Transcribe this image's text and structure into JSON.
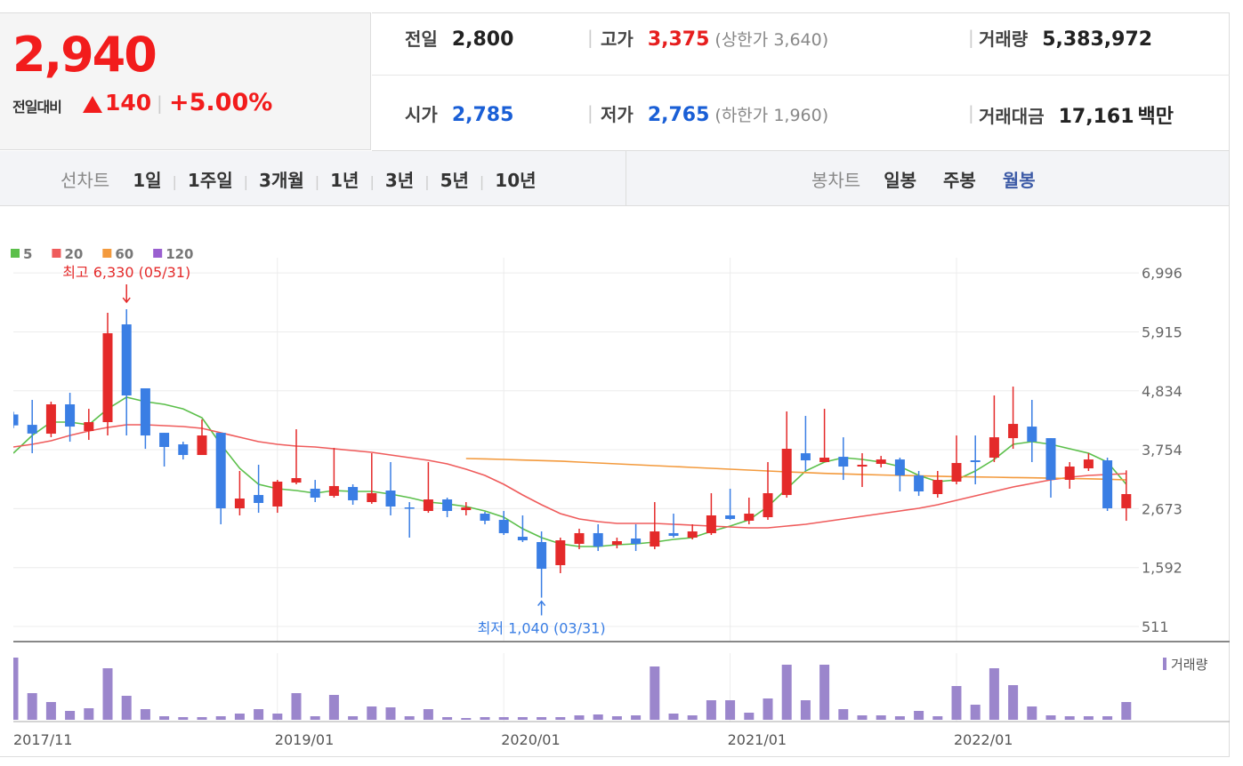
{
  "quote": {
    "price": "2,940",
    "change_label": "전일대비",
    "change": "140",
    "rate": "+5.00%"
  },
  "stats": [
    {
      "label": "전일",
      "value": "2,800"
    },
    {
      "label": "고가",
      "value": "3,375",
      "limit_label": "상한가",
      "limit_value": "3,640"
    },
    {
      "label": "거래량",
      "value": "5,383,972"
    },
    {
      "label": "시가",
      "value": "2,785"
    },
    {
      "label": "저가",
      "value": "2,765",
      "limit_label": "하한가",
      "limit_value": "1,960"
    },
    {
      "label": "거래대금",
      "value": "17,161",
      "unit": "백만"
    }
  ],
  "line_tabs": {
    "label": "선차트",
    "items": [
      "1일",
      "1주일",
      "3개월",
      "1년",
      "3년",
      "5년",
      "10년"
    ]
  },
  "candle_tabs": {
    "label": "봉차트",
    "items": [
      "일봉",
      "주봉",
      "월봉"
    ],
    "active": "월봉"
  },
  "chart_data": {
    "type": "candlestick",
    "categories": [
      "2017/11",
      null,
      null,
      null,
      null,
      null,
      null,
      null,
      null,
      null,
      null,
      null,
      null,
      null,
      "2019/01",
      null,
      null,
      null,
      null,
      null,
      null,
      null,
      null,
      null,
      null,
      null,
      "2020/01",
      null,
      null,
      null,
      null,
      null,
      null,
      null,
      null,
      null,
      null,
      null,
      "2021/01",
      null,
      null,
      null,
      null,
      null,
      null,
      null,
      null,
      null,
      null,
      null,
      "2022/01",
      null,
      null,
      null,
      null,
      null,
      null,
      null,
      null,
      null
    ],
    "open": [
      4400,
      4210,
      4048,
      4586,
      4097,
      4260,
      6053,
      4880,
      4064,
      3852,
      3657,
      4064,
      2679,
      2923,
      2712,
      3151,
      3038,
      2907,
      3070,
      2793,
      3005,
      2695,
      2630,
      2842,
      2646,
      2581,
      2467,
      2157,
      2060,
      1636,
      2027,
      2223,
      2011,
      2125,
      1978,
      2223,
      2141,
      2223,
      2549,
      2451,
      2516,
      2923,
      3689,
      3527,
      3624,
      3445,
      3494,
      3575,
      3282,
      2940,
      3168,
      3559,
      3608,
      3966,
      4178,
      3966,
      3201,
      3412,
      3559,
      2680
    ],
    "high": [
      4450,
      4668,
      4635,
      4798,
      4504,
      6265,
      6330,
      4880,
      4064,
      3901,
      4309,
      4064,
      3364,
      3478,
      3200,
      4129,
      3200,
      3787,
      3119,
      3690,
      3527,
      2793,
      3527,
      2875,
      2793,
      2614,
      2630,
      2549,
      2255,
      2141,
      2304,
      2386,
      2141,
      2386,
      2793,
      2581,
      2386,
      2956,
      3038,
      2875,
      3527,
      4456,
      4374,
      4504,
      3982,
      3690,
      3640,
      3608,
      3364,
      3364,
      4015,
      4015,
      4749,
      4912,
      4668,
      3966,
      3527,
      3690,
      3608,
      3375
    ],
    "low": [
      4150,
      3690,
      3983,
      3901,
      3934,
      4015,
      4015,
      3770,
      3445,
      3575,
      3657,
      2386,
      2549,
      2597,
      2597,
      3119,
      2793,
      2875,
      2744,
      2761,
      2549,
      2141,
      2597,
      2516,
      2549,
      2386,
      2190,
      2060,
      1040,
      1489,
      1929,
      1896,
      1945,
      1896,
      1929,
      2141,
      2108,
      2190,
      2467,
      2386,
      2467,
      2875,
      3364,
      3527,
      3200,
      3070,
      3429,
      2989,
      2907,
      2875,
      3119,
      3119,
      3527,
      3771,
      3527,
      2875,
      3038,
      3364,
      2630,
      2450
    ],
    "close": [
      4200,
      4050,
      4586,
      4178,
      4260,
      5890,
      4749,
      4015,
      3804,
      3657,
      4015,
      2679,
      2858,
      2777,
      3168,
      3233,
      2875,
      3087,
      2826,
      2956,
      2712,
      2679,
      2842,
      2630,
      2695,
      2451,
      2223,
      2092,
      1570,
      2092,
      2223,
      1978,
      2076,
      2027,
      2255,
      2174,
      2255,
      2549,
      2483,
      2581,
      2956,
      3771,
      3559,
      3608,
      3445,
      3478,
      3575,
      3282,
      2989,
      3200,
      3510,
      3527,
      3982,
      4227,
      3901,
      3201,
      3445,
      3575,
      2679,
      2940
    ],
    "up_color": "#e42a2a",
    "down_color": "#3a7ee4",
    "series": [
      {
        "name": "5",
        "color": "#5bbf4a",
        "values": [
          3690,
          4015,
          4260,
          4260,
          4211,
          4504,
          4716,
          4635,
          4586,
          4504,
          4341,
          3852,
          3412,
          3119,
          3038,
          3005,
          2956,
          3005,
          2989,
          2989,
          2940,
          2875,
          2793,
          2761,
          2712,
          2630,
          2516,
          2304,
          2141,
          2027,
          1978,
          1978,
          2011,
          2027,
          2060,
          2108,
          2141,
          2255,
          2353,
          2467,
          2712,
          3038,
          3364,
          3527,
          3608,
          3575,
          3527,
          3445,
          3282,
          3168,
          3200,
          3364,
          3575,
          3852,
          3901,
          3852,
          3771,
          3690,
          3527,
          3119
        ]
      },
      {
        "name": "20",
        "color": "#ef5b5b",
        "values": [
          3804,
          3853,
          3918,
          4016,
          4097,
          4162,
          4211,
          4211,
          4195,
          4179,
          4146,
          4064,
          3983,
          3901,
          3853,
          3820,
          3804,
          3771,
          3738,
          3706,
          3657,
          3608,
          3559,
          3494,
          3396,
          3282,
          3119,
          2923,
          2744,
          2581,
          2483,
          2434,
          2402,
          2402,
          2402,
          2386,
          2369,
          2353,
          2337,
          2320,
          2320,
          2353,
          2386,
          2434,
          2483,
          2532,
          2581,
          2630,
          2679,
          2744,
          2826,
          2907,
          2989,
          3070,
          3135,
          3201,
          3249,
          3282,
          3298,
          3315
        ]
      },
      {
        "name": "60",
        "color": "#f39a3d",
        "values": [
          null,
          null,
          null,
          null,
          null,
          null,
          null,
          null,
          null,
          null,
          null,
          null,
          null,
          null,
          null,
          null,
          null,
          null,
          null,
          null,
          null,
          null,
          null,
          null,
          3592,
          3585,
          3575,
          3565,
          3555,
          3545,
          3527,
          3510,
          3495,
          3478,
          3462,
          3445,
          3429,
          3412,
          3396,
          3380,
          3364,
          3348,
          3335,
          3320,
          3310,
          3300,
          3290,
          3282,
          3275,
          3268,
          3260,
          3255,
          3249,
          3243,
          3238,
          3232,
          3226,
          3220,
          3212,
          3200
        ]
      },
      {
        "name": "120",
        "color": "#9a5fd0",
        "values": [
          null,
          null,
          null,
          null,
          null,
          null,
          null,
          null,
          null,
          null,
          null,
          null,
          null,
          null,
          null,
          null,
          null,
          null,
          null,
          null,
          null,
          null,
          null,
          null,
          null,
          null,
          null,
          null,
          null,
          null,
          null,
          null,
          null,
          null,
          null,
          null,
          null,
          null,
          null,
          null,
          null,
          null,
          null,
          null,
          null,
          null,
          null,
          null,
          null,
          null,
          null,
          null,
          null,
          null,
          null,
          null,
          null,
          null,
          null,
          null
        ]
      }
    ],
    "ylim": [
      234,
      7276
    ],
    "yticks": [
      {
        "value": 6996,
        "label": "6,996"
      },
      {
        "value": 5915,
        "label": "5,915"
      },
      {
        "value": 4834,
        "label": "4,834"
      },
      {
        "value": 3754,
        "label": "3,754"
      },
      {
        "value": 2673,
        "label": "2,673"
      },
      {
        "value": 1592,
        "label": "1,592"
      },
      {
        "value": 511,
        "label": "511"
      }
    ],
    "grid": true,
    "high_label": "최고 6,330 (05/31)",
    "low_label": "최저 1,040 (03/31)",
    "volume": {
      "name": "거래량",
      "color": "#9b86cc",
      "ylim": [
        0,
        75
      ],
      "values": [
        70,
        30,
        20,
        10,
        13,
        58,
        27,
        12,
        4,
        3,
        3,
        4,
        7,
        12,
        7,
        30,
        4,
        28,
        4,
        15,
        14,
        4,
        12,
        3,
        2,
        3,
        3,
        3,
        3,
        3,
        5,
        6,
        4,
        5,
        60,
        7,
        5,
        22,
        22,
        8,
        24,
        62,
        22,
        62,
        12,
        5,
        5,
        4,
        10,
        4,
        38,
        17,
        58,
        39,
        15,
        5,
        4,
        4,
        4,
        20
      ]
    }
  }
}
